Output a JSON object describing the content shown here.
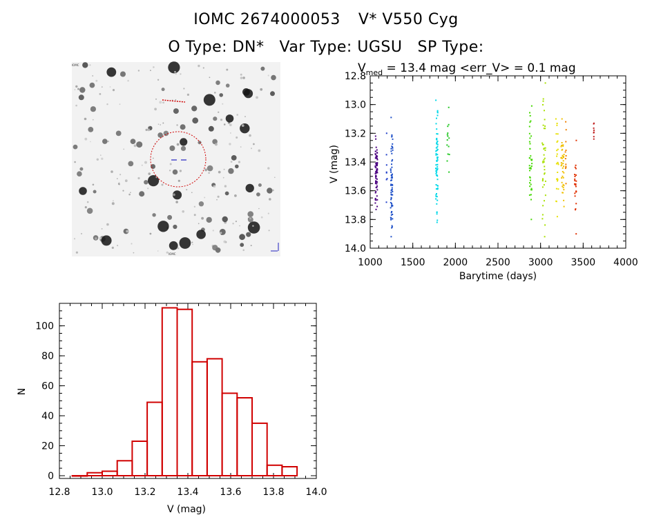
{
  "titles": {
    "object_id": "IOMC 2674000053",
    "star_name": "V* V550 Cyg",
    "o_type": "O Type: DN*",
    "var_type": "Var Type: UGSU",
    "sp_type": "SP Type:"
  },
  "finding_chart": {
    "label_top": "IOMC",
    "label_bottom": "IOMC"
  },
  "chart_data": [
    {
      "type": "scatter",
      "title": "V_med = 13.4 mag <err_V> = 0.1 mag",
      "title_main": "V",
      "title_sub": "med",
      "title_rest": " = 13.4 mag <err_V> = 0.1 mag",
      "xlabel": "Barytime (days)",
      "ylabel": "V (mag)",
      "xlim": [
        1000,
        4000
      ],
      "ylim": [
        14.0,
        12.8
      ],
      "y_inverted": true,
      "xticks": [
        1000,
        1500,
        2000,
        2500,
        3000,
        3500,
        4000
      ],
      "xtick_labels": [
        "1000",
        "1500",
        "2000",
        "2500",
        "3000",
        "3500",
        "4000"
      ],
      "yticks": [
        12.8,
        13.0,
        13.2,
        13.4,
        13.6,
        13.8,
        14.0
      ],
      "ytick_labels": [
        "12.8",
        "13.0",
        "13.2",
        "13.4",
        "13.6",
        "13.8",
        "14.0"
      ],
      "series": [
        {
          "color": "#4b0082",
          "x_range": [
            1060,
            1085
          ],
          "y_range": [
            13.22,
            13.73
          ],
          "n": 70
        },
        {
          "color": "#1e3cc8",
          "x_range": [
            1190,
            1200
          ],
          "y_range": [
            13.2,
            13.68
          ],
          "n": 8
        },
        {
          "color": "#1e50c8",
          "x_range": [
            1240,
            1265
          ],
          "y_range": [
            13.09,
            13.92
          ],
          "n": 70
        },
        {
          "color": "#00d8e8",
          "x_range": [
            1770,
            1795
          ],
          "y_range": [
            12.97,
            13.82
          ],
          "n": 70
        },
        {
          "color": "#22c822",
          "x_range": [
            1900,
            1930
          ],
          "y_range": [
            13.02,
            13.47
          ],
          "n": 14
        },
        {
          "color": "#44d800",
          "x_range": [
            2870,
            2900
          ],
          "y_range": [
            13.01,
            13.8
          ],
          "n": 40
        },
        {
          "color": "#a8e000",
          "x_range": [
            3020,
            3060
          ],
          "y_range": [
            12.85,
            13.92
          ],
          "n": 40
        },
        {
          "color": "#e8e000",
          "x_range": [
            3180,
            3210
          ],
          "y_range": [
            13.1,
            13.78
          ],
          "n": 25
        },
        {
          "color": "#f0c000",
          "x_range": [
            3240,
            3275
          ],
          "y_range": [
            13.1,
            13.71
          ],
          "n": 40
        },
        {
          "color": "#f08000",
          "x_range": [
            3290,
            3300
          ],
          "y_range": [
            13.12,
            13.55
          ],
          "n": 12
        },
        {
          "color": "#e03000",
          "x_range": [
            3400,
            3420
          ],
          "y_range": [
            13.25,
            13.9
          ],
          "n": 25
        },
        {
          "color": "#c02020",
          "x_range": [
            3620,
            3630
          ],
          "y_range": [
            13.13,
            13.24
          ],
          "n": 8
        }
      ]
    },
    {
      "type": "bar",
      "subtype": "histogram",
      "xlabel": "V (mag)",
      "ylabel": "N",
      "xlim": [
        12.8,
        14.0
      ],
      "ylim": [
        0,
        115
      ],
      "xticks": [
        12.8,
        13.0,
        13.2,
        13.4,
        13.6,
        13.8,
        14.0
      ],
      "xtick_labels": [
        "12.8",
        "13.0",
        "13.2",
        "13.4",
        "13.6",
        "13.8",
        "14.0"
      ],
      "yticks": [
        0,
        20,
        40,
        60,
        80,
        100
      ],
      "ytick_labels": [
        "0",
        "20",
        "40",
        "60",
        "80",
        "100"
      ],
      "bin_width": 0.07,
      "bin_start": 12.86,
      "values": [
        0,
        2,
        3,
        10,
        23,
        49,
        112,
        111,
        76,
        78,
        55,
        52,
        35,
        7,
        6
      ],
      "color": "#d00000"
    }
  ]
}
